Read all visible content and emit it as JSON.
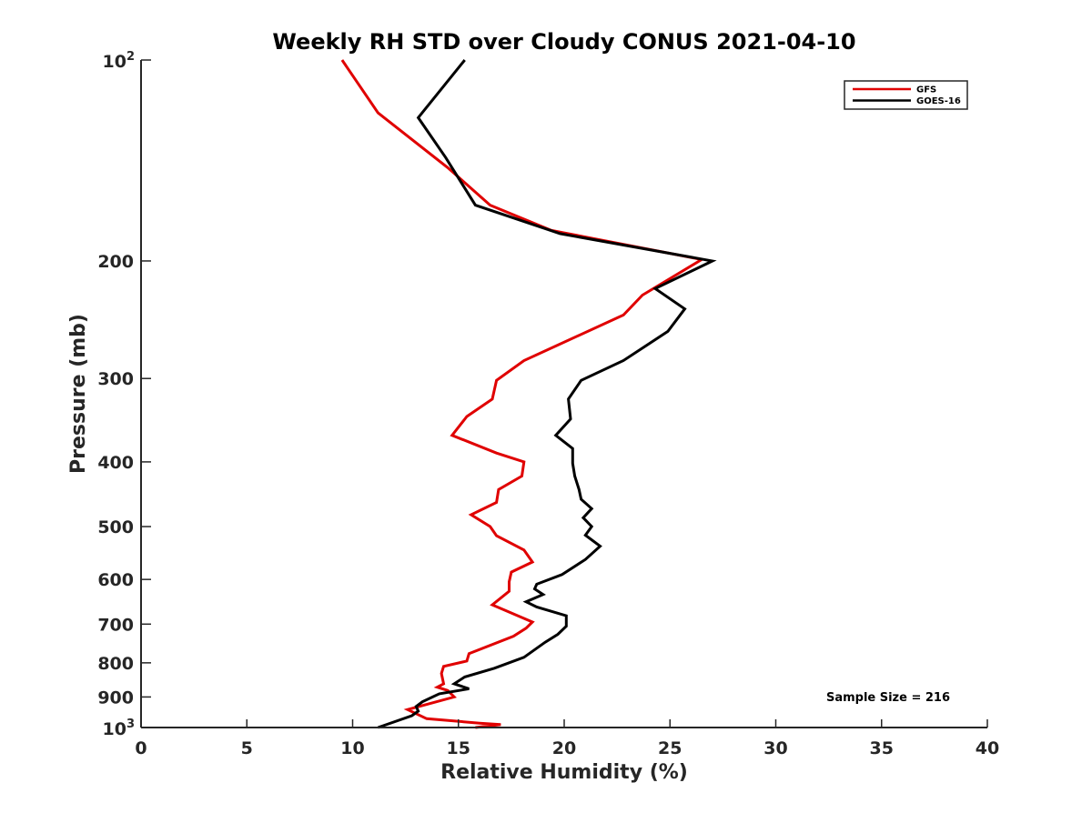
{
  "chart_data": {
    "type": "line",
    "title": "Weekly RH STD over Cloudy CONUS 2021-04-10",
    "xlabel": "Relative Humidity (%)",
    "ylabel": "Pressure (mb)",
    "xlim": [
      0,
      40
    ],
    "ylim": [
      100,
      1000
    ],
    "y_scale": "log",
    "y_reversed": true,
    "grid": false,
    "legend_position": "top-right",
    "x_ticks": [
      "0",
      "5",
      "10",
      "15",
      "20",
      "25",
      "30",
      "35",
      "40"
    ],
    "y_ticks": [
      {
        "value": 100,
        "base": "10",
        "exp": "2"
      },
      {
        "value": 200,
        "label": "200"
      },
      {
        "value": 300,
        "label": "300"
      },
      {
        "value": 400,
        "label": "400"
      },
      {
        "value": 500,
        "label": "500"
      },
      {
        "value": 600,
        "label": "600"
      },
      {
        "value": 700,
        "label": "700"
      },
      {
        "value": 800,
        "label": "800"
      },
      {
        "value": 900,
        "label": "900"
      },
      {
        "value": 1000,
        "base": "10",
        "exp": "3"
      }
    ],
    "annotation": "Sample Size = 216",
    "series": [
      {
        "name": "GFS",
        "color": "#e00000",
        "points": [
          [
            9.5,
            100
          ],
          [
            11.2,
            120
          ],
          [
            14.5,
            145
          ],
          [
            16.5,
            165
          ],
          [
            19.4,
            180
          ],
          [
            26.5,
            199
          ],
          [
            23.7,
            225
          ],
          [
            22.8,
            241
          ],
          [
            18.1,
            282
          ],
          [
            16.8,
            302
          ],
          [
            16.6,
            322
          ],
          [
            15.4,
            342
          ],
          [
            14.7,
            365
          ],
          [
            16.8,
            388
          ],
          [
            18.1,
            400
          ],
          [
            18.0,
            420
          ],
          [
            16.9,
            440
          ],
          [
            16.8,
            460
          ],
          [
            15.6,
            480
          ],
          [
            16.5,
            500
          ],
          [
            16.8,
            516
          ],
          [
            18.1,
            542
          ],
          [
            18.5,
            565
          ],
          [
            17.5,
            585
          ],
          [
            17.4,
            605
          ],
          [
            17.4,
            625
          ],
          [
            16.6,
            655
          ],
          [
            18.5,
            695
          ],
          [
            18.2,
            710
          ],
          [
            17.6,
            730
          ],
          [
            15.5,
            775
          ],
          [
            15.4,
            795
          ],
          [
            14.3,
            810
          ],
          [
            14.2,
            830
          ],
          [
            14.3,
            860
          ],
          [
            14.0,
            870
          ],
          [
            14.5,
            880
          ],
          [
            14.8,
            900
          ],
          [
            12.6,
            940
          ],
          [
            13.5,
            970
          ],
          [
            16.0,
            985
          ],
          [
            17.0,
            990
          ],
          [
            15.8,
            1000
          ]
        ]
      },
      {
        "name": "GOES-16",
        "color": "#000000",
        "points": [
          [
            15.3,
            100
          ],
          [
            13.1,
            122
          ],
          [
            14.4,
            140
          ],
          [
            15.8,
            165
          ],
          [
            19.8,
            182
          ],
          [
            27.0,
            200
          ],
          [
            24.3,
            220
          ],
          [
            25.7,
            236
          ],
          [
            24.9,
            255
          ],
          [
            22.8,
            282
          ],
          [
            20.8,
            302
          ],
          [
            20.2,
            322
          ],
          [
            20.3,
            345
          ],
          [
            19.6,
            365
          ],
          [
            20.4,
            382
          ],
          [
            20.4,
            402
          ],
          [
            20.5,
            420
          ],
          [
            20.7,
            440
          ],
          [
            20.8,
            455
          ],
          [
            21.3,
            470
          ],
          [
            20.9,
            485
          ],
          [
            21.3,
            500
          ],
          [
            21.0,
            515
          ],
          [
            21.7,
            535
          ],
          [
            21.0,
            560
          ],
          [
            19.9,
            590
          ],
          [
            18.7,
            610
          ],
          [
            18.6,
            620
          ],
          [
            19.0,
            632
          ],
          [
            18.2,
            648
          ],
          [
            18.7,
            660
          ],
          [
            20.1,
            680
          ],
          [
            20.1,
            705
          ],
          [
            19.7,
            725
          ],
          [
            19.1,
            745
          ],
          [
            18.1,
            785
          ],
          [
            16.7,
            815
          ],
          [
            15.3,
            840
          ],
          [
            14.8,
            860
          ],
          [
            15.5,
            875
          ],
          [
            14.1,
            890
          ],
          [
            13.3,
            915
          ],
          [
            13.0,
            930
          ],
          [
            13.1,
            945
          ],
          [
            12.8,
            960
          ],
          [
            11.2,
            1000
          ]
        ]
      }
    ]
  }
}
